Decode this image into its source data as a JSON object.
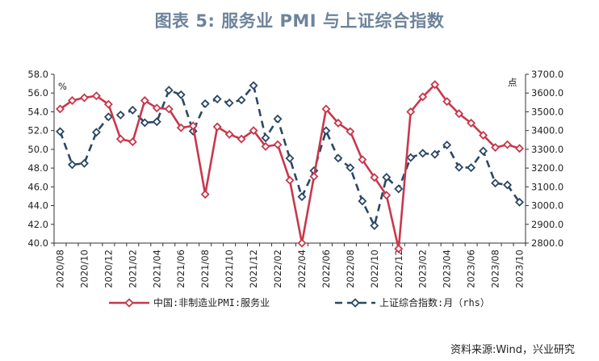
{
  "title": "图表 5:    服务业 PMI 与上证综合指数",
  "source": "资料来源:Wind，兴业研究",
  "chart_data": {
    "type": "line",
    "left_unit": "%",
    "right_unit": "点",
    "left_ylim": [
      40.0,
      58.0
    ],
    "right_ylim": [
      2800.0,
      3700.0
    ],
    "left_ticks": [
      "40.0",
      "42.0",
      "44.0",
      "46.0",
      "48.0",
      "50.0",
      "52.0",
      "54.0",
      "56.0",
      "58.0"
    ],
    "right_ticks": [
      "2800.0",
      "2900.0",
      "3000.0",
      "3100.0",
      "3200.0",
      "3300.0",
      "3400.0",
      "3500.0",
      "3600.0",
      "3700.0"
    ],
    "x_tick_labels": [
      "2020/08",
      "2020/10",
      "2020/12",
      "2021/02",
      "2021/04",
      "2021/06",
      "2021/08",
      "2021/10",
      "2021/12",
      "2022/02",
      "2022/04",
      "2022/06",
      "2022/08",
      "2022/10",
      "2022/12",
      "2023/02",
      "2023/04",
      "2023/06",
      "2023/08",
      "2023/10"
    ],
    "series": [
      {
        "name": "中国:非制造业PMI:服务业",
        "axis": "left",
        "color": "#c8384c",
        "style": "solid",
        "marker": "diamond",
        "values": [
          54.3,
          55.2,
          55.5,
          55.7,
          54.8,
          51.1,
          50.8,
          55.2,
          54.4,
          54.3,
          52.3,
          52.5,
          45.2,
          52.4,
          51.6,
          51.1,
          52.0,
          50.3,
          50.5,
          46.7,
          40.0,
          47.1,
          54.3,
          52.8,
          51.9,
          48.9,
          47.0,
          45.1,
          39.4,
          54.0,
          55.6,
          56.9,
          55.1,
          53.8,
          52.8,
          51.5,
          50.2,
          50.5,
          50.1
        ]
      },
      {
        "name": "上证综合指数:月（rhs）",
        "axis": "right",
        "color": "#2a4865",
        "style": "dashed",
        "marker": "diamond",
        "values": [
          3395,
          3218,
          3225,
          3391,
          3473,
          3483,
          3509,
          3442,
          3447,
          3615,
          3591,
          3397,
          3543,
          3568,
          3547,
          3563,
          3640,
          3361,
          3462,
          3252,
          3047,
          3186,
          3399,
          3253,
          3202,
          3024,
          2893,
          3151,
          3089,
          3256,
          3279,
          3273,
          3323,
          3204,
          3202,
          3291,
          3120,
          3110,
          3018
        ]
      }
    ]
  }
}
